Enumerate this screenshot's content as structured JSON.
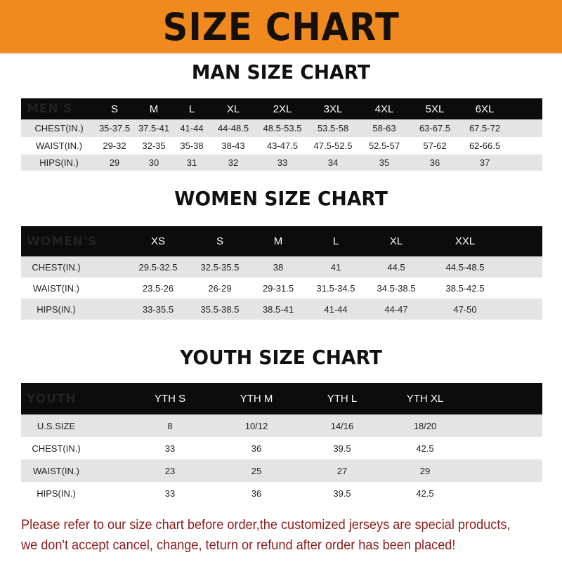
{
  "banner": {
    "title": "SIZE CHART",
    "color": "#f08a1e"
  },
  "men": {
    "title": "MAN SIZE CHART",
    "header": [
      "MEN'S",
      "S",
      "M",
      "L",
      "XL",
      "2XL",
      "3XL",
      "4XL",
      "5XL",
      "6XL"
    ],
    "rows": [
      [
        "CHEST(IN.)",
        "35-37.5",
        "37.5-41",
        "41-44",
        "44-48.5",
        "48.5-53.5",
        "53.5-58",
        "58-63",
        "63-67.5",
        "67.5-72"
      ],
      [
        "WAIST(IN.)",
        "29-32",
        "32-35",
        "35-38",
        "38-43",
        "43-47.5",
        "47.5-52.5",
        "52.5-57",
        "57-62",
        "62-66.5"
      ],
      [
        "HIPS(IN.)",
        "29",
        "30",
        "31",
        "32",
        "33",
        "34",
        "35",
        "36",
        "37"
      ]
    ]
  },
  "women": {
    "title": "WOMEN SIZE CHART",
    "header": [
      "WOMEN'S",
      "XS",
      "S",
      "M",
      "L",
      "XL",
      "XXL"
    ],
    "rows": [
      [
        "CHEST(IN.)",
        "29.5-32.5",
        "32.5-35.5",
        "38",
        "41",
        "44.5",
        "44.5-48.5"
      ],
      [
        "WAIST(IN.)",
        "23.5-26",
        "26-29",
        "29-31.5",
        "31.5-34.5",
        "34.5-38.5",
        "38.5-42.5"
      ],
      [
        "HIPS(IN.)",
        "33-35.5",
        "35.5-38.5",
        "38.5-41",
        "41-44",
        "44-47",
        "47-50"
      ]
    ]
  },
  "youth": {
    "title": "YOUTH SIZE CHART",
    "header": [
      "YOUTH",
      "YTH S",
      "YTH M",
      "YTH L",
      "YTH XL"
    ],
    "rows": [
      [
        "U.S.SIZE",
        "8",
        "10/12",
        "14/16",
        "18/20"
      ],
      [
        "CHEST(IN.)",
        "33",
        "36",
        "39.5",
        "42.5"
      ],
      [
        "WAIST(IN.)",
        "23",
        "25",
        "27",
        "29"
      ],
      [
        "HIPS(IN.)",
        "33",
        "36",
        "39.5",
        "42.5"
      ]
    ]
  },
  "note": {
    "line1": "Please refer to our size chart before order,the customized jerseys are special products,",
    "line2": "we don't accept cancel, change, teturn or refund after order has been placed!",
    "color": "#8b1c1c"
  }
}
